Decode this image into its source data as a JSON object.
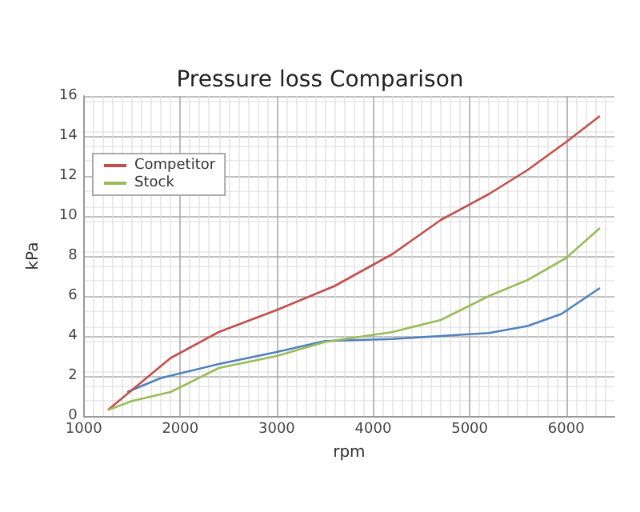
{
  "chart_data": {
    "type": "line",
    "title": "Pressure loss Comparison",
    "xlabel": "rpm",
    "ylabel": "kPa",
    "xlim": [
      1000,
      6500
    ],
    "xticks": [
      1000,
      2000,
      3000,
      4000,
      5000,
      6000
    ],
    "ylim": [
      0,
      16
    ],
    "yticks": [
      0,
      2,
      4,
      6,
      8,
      10,
      12,
      14,
      16
    ],
    "grid": true,
    "legend": "top left",
    "marker": "none",
    "line_style": "solid",
    "series": [
      {
        "color": "#4f81bd",
        "x": [
          1450,
          1800,
          2400,
          3000,
          3500,
          4200,
          4700,
          5200,
          5600,
          5950,
          6350
        ],
        "values": [
          1.2,
          1.9,
          2.6,
          3.2,
          3.75,
          3.85,
          4.0,
          4.15,
          4.5,
          5.1,
          6.4
        ]
      },
      {
        "name": "Competitor",
        "color": "#c0504d",
        "x": [
          1250,
          1500,
          1900,
          2400,
          3000,
          3600,
          4200,
          4700,
          5200,
          5600,
          6000,
          6350
        ],
        "values": [
          0.3,
          1.3,
          2.9,
          4.2,
          5.3,
          6.5,
          8.1,
          9.8,
          11.1,
          12.3,
          13.7,
          15.0
        ]
      },
      {
        "name": "Stock",
        "color": "#9bbb59",
        "x": [
          1250,
          1500,
          1900,
          2400,
          3000,
          3500,
          4200,
          4700,
          5200,
          5600,
          6000,
          6350
        ],
        "values": [
          0.3,
          0.75,
          1.2,
          2.4,
          3.0,
          3.7,
          4.2,
          4.8,
          6.0,
          6.8,
          7.9,
          9.4
        ]
      }
    ]
  }
}
